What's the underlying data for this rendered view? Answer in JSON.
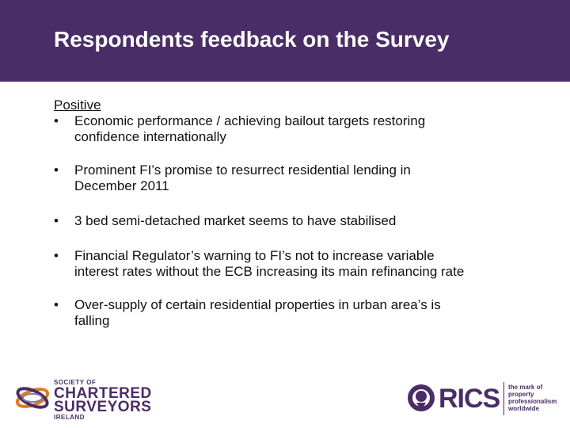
{
  "slide": {
    "title": "Respondents feedback on the Survey",
    "subheading": "Positive",
    "bullet_glyph": "•",
    "bullets": [
      {
        "line1": "Economic performance / achieving bailout targets restoring",
        "line2": "confidence internationally"
      },
      {
        "line1": "Prominent FI’s promise to resurrect residential lending in",
        "line2": "December 2011"
      },
      {
        "line1": "3 bed semi-detached market seems to have stabilised",
        "line2": ""
      },
      {
        "line1": "Financial Regulator’s warning to FI’s not to increase variable",
        "line2": "interest rates without the ECB increasing its main refinancing rate"
      },
      {
        "line1": "Over-supply of certain residential properties in urban area’s is",
        "line2": "falling"
      }
    ]
  },
  "logos": {
    "scs": {
      "line1": "SOCIETY OF",
      "line2": "CHARTERED",
      "line3": "SURVEYORS",
      "line4": "IRELAND"
    },
    "rics": {
      "name": "RICS",
      "tag1": "the mark of",
      "tag2": "property",
      "tag3": "professionalism",
      "tag4": "worldwide"
    }
  },
  "colors": {
    "brand_purple": "#4a2d66",
    "accent_orange": "#e07b22",
    "background": "#ffffff"
  }
}
